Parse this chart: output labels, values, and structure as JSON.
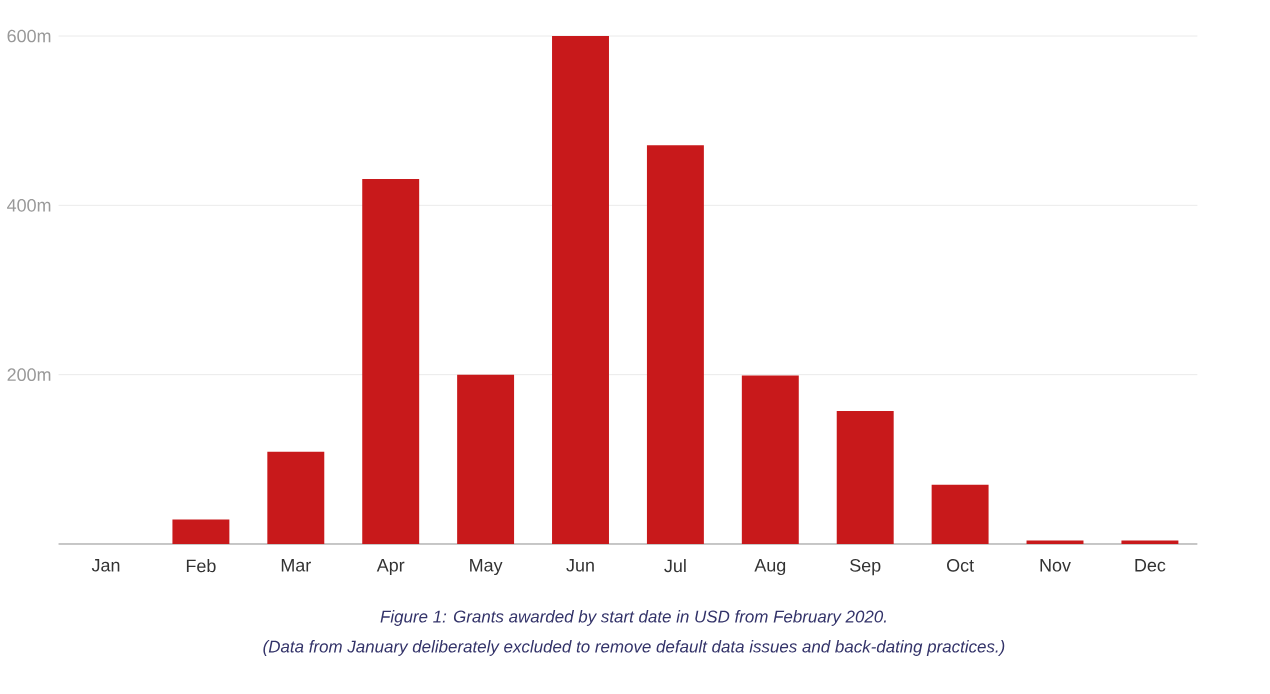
{
  "chart_data": {
    "type": "bar",
    "categories": [
      "Jan",
      "Feb",
      "Mar",
      "Apr",
      "May",
      "Jun",
      "Jul",
      "Aug",
      "Sep",
      "Oct",
      "Nov",
      "Dec"
    ],
    "values": [
      null,
      29,
      109,
      431,
      200,
      600,
      471,
      199,
      157,
      70,
      4,
      4
    ],
    "color": "#c8191b",
    "ylim": [
      0,
      600
    ],
    "yticks": [
      {
        "value": 200,
        "label": "200m"
      },
      {
        "value": 400,
        "label": "400m"
      },
      {
        "value": 600,
        "label": "600m"
      }
    ],
    "grid": "y",
    "annotations": [
      "Figure 1: Grants awarded by start date in USD from February 2020.",
      "(Data from January deliberately excluded to remove default data issues and back-dating practices.)"
    ]
  }
}
